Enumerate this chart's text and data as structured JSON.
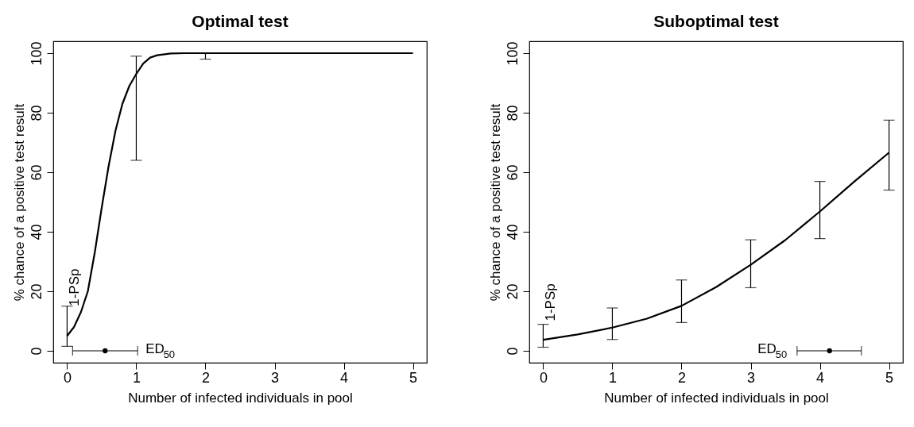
{
  "chart_data": [
    {
      "type": "line",
      "title": "Optimal test",
      "xlabel": "Number of infected individuals in pool",
      "ylabel": "% chance of a positive test result",
      "xlim": [
        -0.2,
        5.2
      ],
      "ylim": [
        -4,
        104
      ],
      "xticks": [
        0,
        1,
        2,
        3,
        4,
        5
      ],
      "yticks": [
        0,
        20,
        40,
        60,
        80,
        100
      ],
      "series": [
        {
          "color": "#000000",
          "marker": "none",
          "x": [
            0,
            0.1,
            0.2,
            0.3,
            0.4,
            0.5,
            0.6,
            0.7,
            0.8,
            0.9,
            1,
            1.1,
            1.2,
            1.3,
            1.5,
            1.7,
            2,
            3,
            4,
            5
          ],
          "values": [
            5,
            8,
            13,
            20,
            33,
            48,
            62,
            74,
            83,
            89,
            93,
            96.5,
            98.5,
            99.3,
            99.9,
            100,
            100,
            100,
            100,
            100
          ],
          "errors": [
            [
              1.5,
              15
            ],
            null,
            null,
            null,
            null,
            null,
            null,
            null,
            null,
            null,
            [
              64,
              99
            ],
            null,
            null,
            null,
            null,
            null,
            [
              98,
              100
            ],
            null,
            null,
            null
          ]
        },
        {
          "type": "scatter",
          "name": "ED$_{50}$",
          "color": "#000000",
          "marker": "circle",
          "x": [
            0.55
          ],
          "values": [
            0
          ],
          "xerrors": [
            [
              0.08,
              1.02
            ]
          ]
        }
      ],
      "annotations": [
        {
          "text": "1-PSp",
          "x": 0,
          "y": 15
        }
      ]
    },
    {
      "type": "line",
      "title": "Suboptimal test",
      "xlabel": "Number of infected individuals in pool",
      "ylabel": "% chance of a positive test result",
      "xlim": [
        -0.2,
        5.2
      ],
      "ylim": [
        -4,
        104
      ],
      "xticks": [
        0,
        1,
        2,
        3,
        4,
        5
      ],
      "yticks": [
        0,
        20,
        40,
        60,
        80,
        100
      ],
      "series": [
        {
          "color": "#000000",
          "marker": "none",
          "x": [
            0,
            0.5,
            1,
            1.5,
            2,
            2.5,
            3,
            3.5,
            4,
            4.5,
            5
          ],
          "values": [
            3.7,
            5.5,
            7.8,
            10.8,
            15.1,
            21.4,
            28.9,
            37.2,
            46.8,
            56.9,
            66.6
          ],
          "errors": [
            [
              1.2,
              8.9
            ],
            null,
            [
              3.8,
              14.4
            ],
            null,
            [
              9.5,
              23.8
            ],
            null,
            [
              21.2,
              37.3
            ],
            null,
            [
              37.7,
              56.9
            ],
            null,
            [
              54,
              77.5
            ]
          ]
        },
        {
          "type": "scatter",
          "name": "ED$_{50}$",
          "color": "#000000",
          "marker": "circle",
          "x": [
            4.14
          ],
          "values": [
            0
          ],
          "xerrors": [
            [
              3.67,
              4.6
            ]
          ]
        }
      ],
      "annotations": [
        {
          "text": "1-PSp",
          "x": 0,
          "y": 10
        }
      ]
    }
  ]
}
